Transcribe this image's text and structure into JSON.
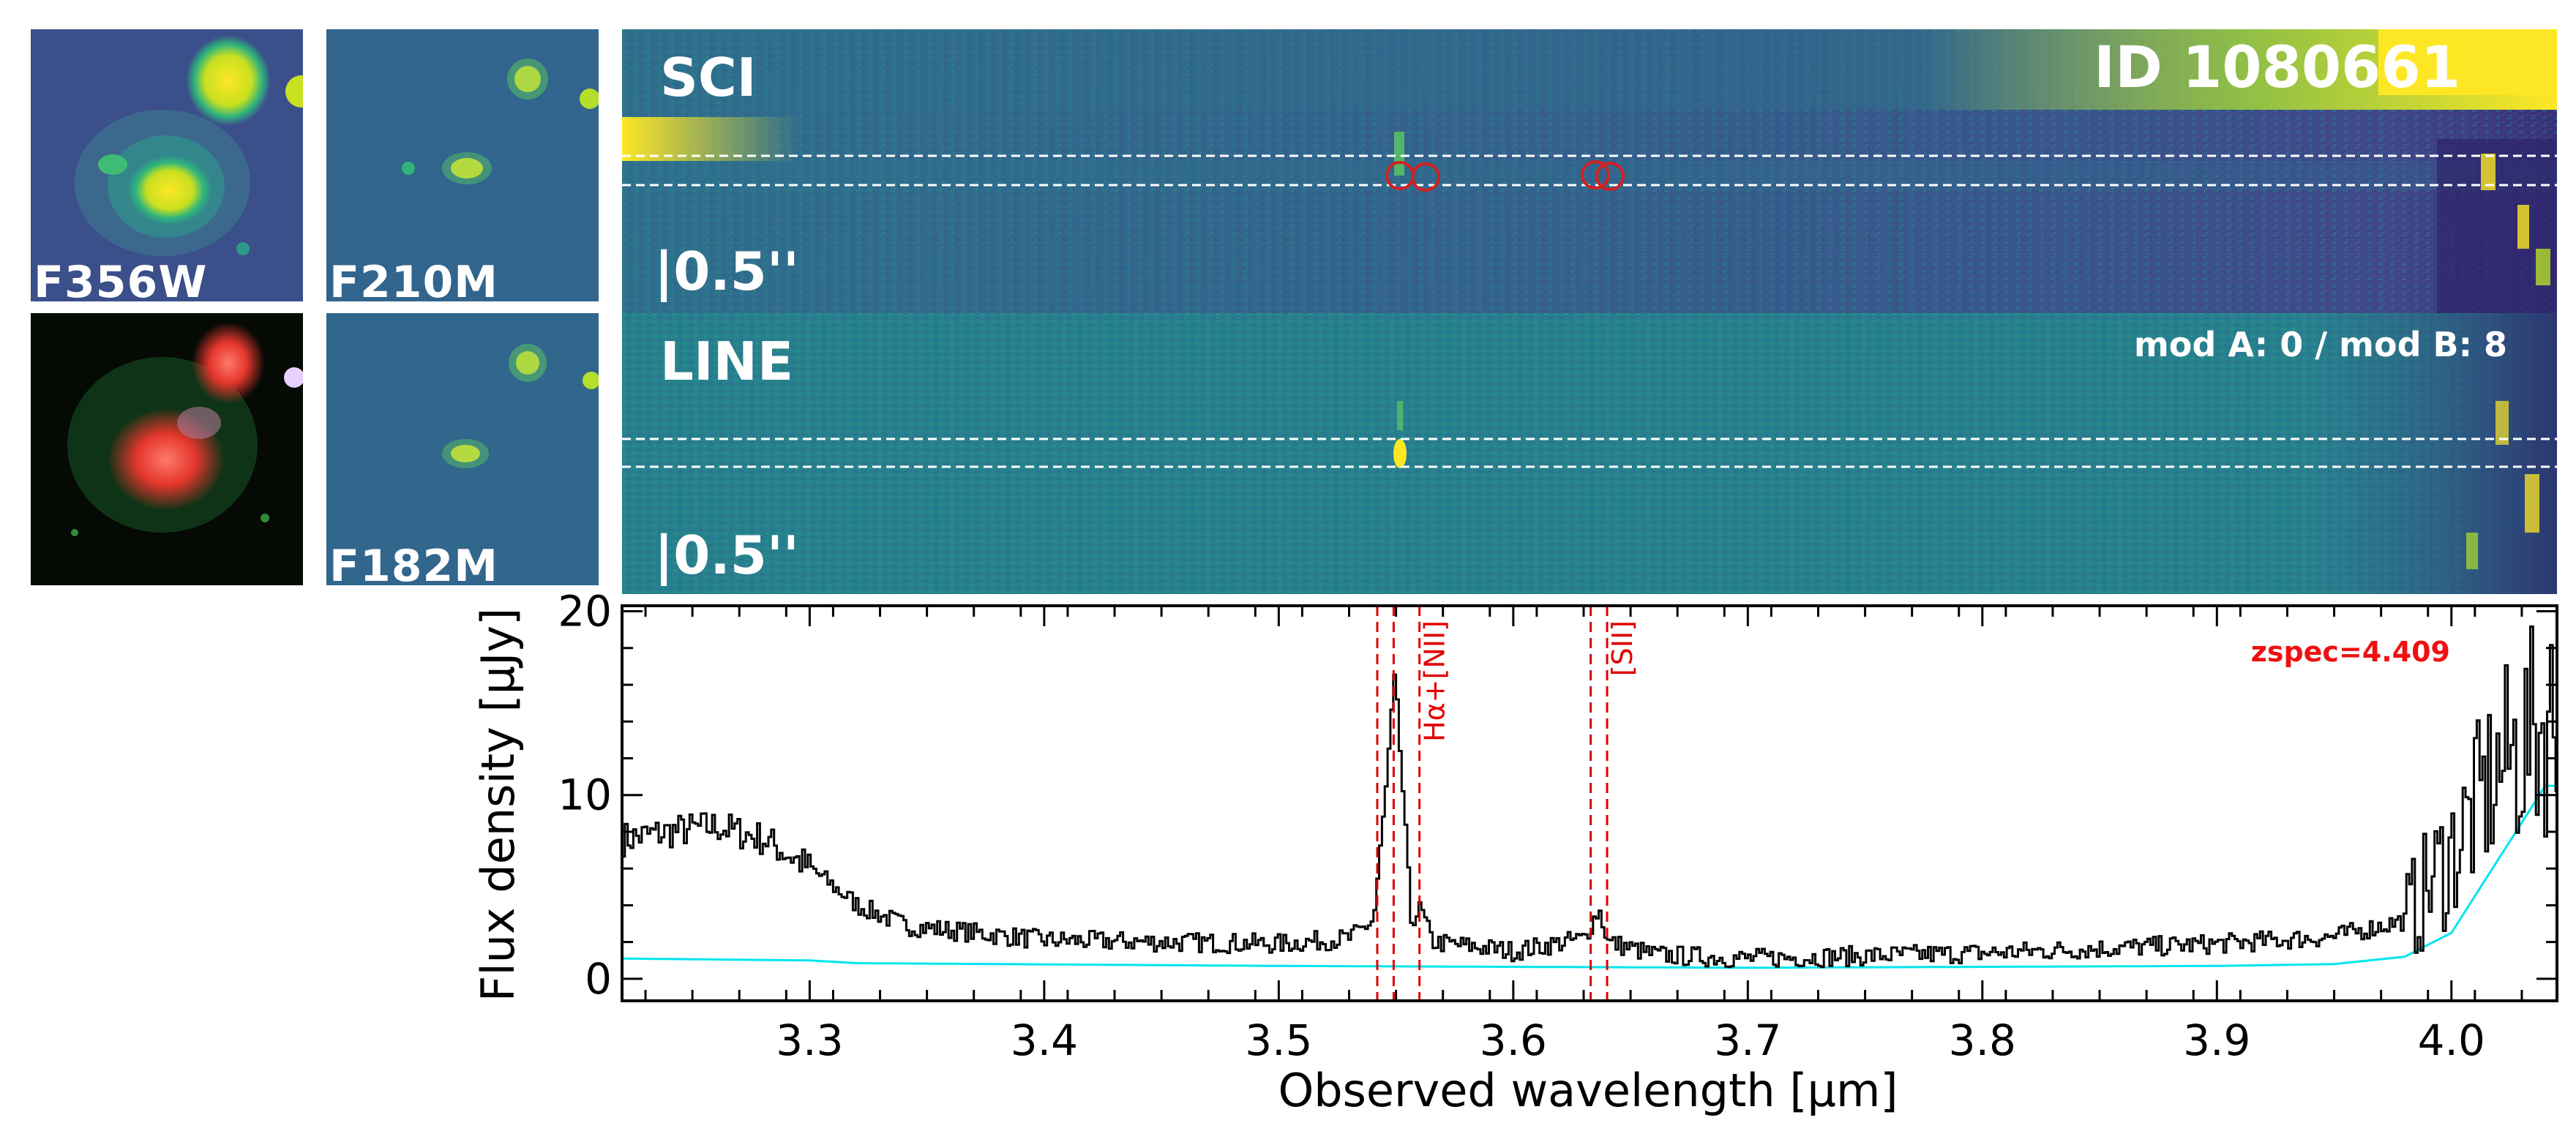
{
  "thumbnails": [
    {
      "label": "F356W",
      "colormap": "viridis"
    },
    {
      "label": "F210M",
      "colormap": "viridis"
    },
    {
      "label": "",
      "colormap": "rgb"
    },
    {
      "label": "F182M",
      "colormap": "viridis"
    }
  ],
  "panels": {
    "sci": {
      "label": "SCI",
      "scale": "|0.5''",
      "object_id": "ID 1080661"
    },
    "line": {
      "label": "LINE",
      "scale": "|0.5''",
      "modules": "mod A: 0 / mod B: 8"
    }
  },
  "colors": {
    "spectrum": "#000000",
    "error": "#00e5ee",
    "lines": "#e00000",
    "viridis_bg": "#2f7f8c",
    "viridis_bright": "#fde725"
  },
  "chart_data": {
    "type": "line",
    "title": "",
    "xlabel": "Observed wavelength [µm]",
    "ylabel": "Flux density [µJy]",
    "xlim": [
      3.22,
      4.045
    ],
    "ylim": [
      -1.2,
      20.3
    ],
    "xticks": [
      "3.3",
      "3.4",
      "3.5",
      "3.6",
      "3.7",
      "3.8",
      "3.9",
      "4.0"
    ],
    "xtick_values": [
      3.3,
      3.4,
      3.5,
      3.6,
      3.7,
      3.8,
      3.9,
      4.0
    ],
    "yticks": [
      "0",
      "10",
      "20"
    ],
    "ytick_values": [
      0,
      10,
      20
    ],
    "redshift_label": "zspec=4.409",
    "emission_lines": [
      {
        "label": "Hα+[NII]",
        "wavelengths": [
          3.542,
          3.549,
          3.56
        ]
      },
      {
        "label": "[SII]",
        "wavelengths": [
          3.633,
          3.64
        ]
      }
    ],
    "series": [
      {
        "name": "flux",
        "x": [
          3.22,
          3.24,
          3.26,
          3.28,
          3.3,
          3.32,
          3.34,
          3.4,
          3.5,
          3.53,
          3.54,
          3.545,
          3.549,
          3.552,
          3.556,
          3.56,
          3.565,
          3.6,
          3.63,
          3.636,
          3.64,
          3.66,
          3.7,
          3.8,
          3.9,
          3.95,
          3.98,
          4.0,
          4.02,
          4.04
        ],
        "values": [
          7.6,
          8.0,
          8.3,
          7.6,
          6.0,
          4.0,
          2.9,
          2.1,
          1.9,
          2.2,
          3.2,
          10.0,
          16.5,
          11.0,
          3.2,
          3.8,
          2.0,
          1.5,
          2.2,
          3.8,
          2.0,
          1.3,
          1.1,
          1.4,
          1.9,
          2.3,
          3.2,
          7.0,
          11.5,
          14.0
        ]
      },
      {
        "name": "error",
        "x": [
          3.22,
          3.3,
          3.32,
          3.5,
          3.7,
          3.9,
          3.95,
          3.98,
          4.0,
          4.02,
          4.04
        ],
        "values": [
          1.1,
          1.0,
          0.85,
          0.7,
          0.6,
          0.7,
          0.8,
          1.2,
          2.5,
          6.5,
          10.5
        ]
      }
    ]
  }
}
